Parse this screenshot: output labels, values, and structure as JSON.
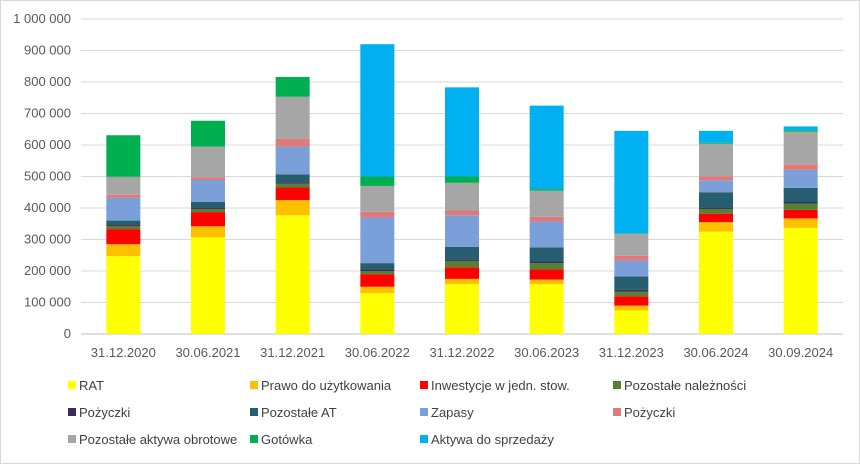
{
  "chart_data": {
    "type": "bar",
    "stacked": true,
    "title": "",
    "xlabel": "",
    "ylabel": "",
    "ylim": [
      0,
      1000000
    ],
    "ytick_step": 100000,
    "grid": "horizontal",
    "legend_position": "bottom",
    "categories": [
      "31.12.2020",
      "30.06.2021",
      "31.12.2021",
      "30.06.2022",
      "31.12.2022",
      "30.06.2023",
      "31.12.2023",
      "30.06.2024",
      "30.09.2024"
    ],
    "series": [
      {
        "name": "RAT",
        "color": "#FFFF00",
        "values": [
          247000,
          307000,
          377000,
          130000,
          158000,
          158000,
          75000,
          325000,
          337000
        ]
      },
      {
        "name": "Prawo do użytkowania",
        "color": "#FFC000",
        "values": [
          38000,
          35000,
          48000,
          20000,
          17000,
          15000,
          15000,
          30000,
          30000
        ]
      },
      {
        "name": "Inwestycje w jedn. stow.",
        "color": "#FF0000",
        "values": [
          48000,
          45000,
          40000,
          40000,
          37000,
          32000,
          30000,
          27000,
          27000
        ]
      },
      {
        "name": "Pozostałe należności",
        "color": "#548235",
        "values": [
          10000,
          10000,
          12000,
          10000,
          20000,
          20000,
          15000,
          15000,
          20000
        ]
      },
      {
        "name": "Pożyczki",
        "color": "#3C2A5C",
        "values": [
          5000,
          5000,
          5000,
          5000,
          5000,
          5000,
          5000,
          5000,
          5000
        ]
      },
      {
        "name": "Pozostałe AT",
        "color": "#255E6E",
        "values": [
          12000,
          17000,
          25000,
          20000,
          40000,
          45000,
          43000,
          48000,
          45000
        ]
      },
      {
        "name": "Zapasy",
        "color": "#7A9FD9",
        "values": [
          72000,
          70000,
          88000,
          145000,
          100000,
          82000,
          50000,
          38000,
          57000
        ]
      },
      {
        "name": "Pożyczki",
        "color": "#E07A7A",
        "values": [
          10000,
          8000,
          25000,
          18000,
          15000,
          15000,
          15000,
          13000,
          18000
        ]
      },
      {
        "name": "Pozostałe aktywa obrotowe",
        "color": "#A6A6A6",
        "values": [
          57000,
          98000,
          133000,
          82000,
          88000,
          83000,
          70000,
          103000,
          103000
        ]
      },
      {
        "name": "Gotówka",
        "color": "#00B050",
        "values": [
          132000,
          82000,
          63000,
          30000,
          20000,
          5000,
          2000,
          3000,
          5000
        ]
      },
      {
        "name": "Aktywa do sprzedaży",
        "color": "#00B0F0",
        "values": [
          0,
          0,
          0,
          420000,
          283000,
          265000,
          325000,
          38000,
          12000
        ]
      }
    ],
    "ytick_labels": [
      "0",
      "100 000",
      "200 000",
      "300 000",
      "400 000",
      "500 000",
      "600 000",
      "700 000",
      "800 000",
      "900 000",
      "1 000 000"
    ]
  }
}
